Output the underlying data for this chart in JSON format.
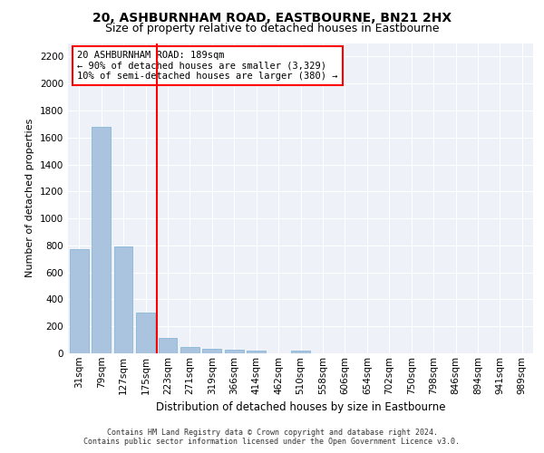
{
  "title": "20, ASHBURNHAM ROAD, EASTBOURNE, BN21 2HX",
  "subtitle": "Size of property relative to detached houses in Eastbourne",
  "xlabel": "Distribution of detached houses by size in Eastbourne",
  "ylabel": "Number of detached properties",
  "categories": [
    "31sqm",
    "79sqm",
    "127sqm",
    "175sqm",
    "223sqm",
    "271sqm",
    "319sqm",
    "366sqm",
    "414sqm",
    "462sqm",
    "510sqm",
    "558sqm",
    "606sqm",
    "654sqm",
    "702sqm",
    "750sqm",
    "798sqm",
    "846sqm",
    "894sqm",
    "941sqm",
    "989sqm"
  ],
  "values": [
    770,
    1680,
    795,
    300,
    115,
    45,
    32,
    27,
    22,
    0,
    22,
    0,
    0,
    0,
    0,
    0,
    0,
    0,
    0,
    0,
    0
  ],
  "bar_color": "#aac4e0",
  "bar_edge_color": "#7aafd4",
  "vline_x": 3.5,
  "vline_color": "red",
  "annotation_text": "20 ASHBURNHAM ROAD: 189sqm\n← 90% of detached houses are smaller (3,329)\n10% of semi-detached houses are larger (380) →",
  "annotation_box_color": "white",
  "annotation_box_edge": "red",
  "ylim": [
    0,
    2300
  ],
  "yticks": [
    0,
    200,
    400,
    600,
    800,
    1000,
    1200,
    1400,
    1600,
    1800,
    2000,
    2200
  ],
  "bg_color": "#eef2f8",
  "footer_line1": "Contains HM Land Registry data © Crown copyright and database right 2024.",
  "footer_line2": "Contains public sector information licensed under the Open Government Licence v3.0.",
  "title_fontsize": 10,
  "subtitle_fontsize": 9,
  "ylabel_fontsize": 8,
  "xlabel_fontsize": 8.5,
  "tick_fontsize": 7.5,
  "footer_fontsize": 6,
  "annot_fontsize": 7.5
}
